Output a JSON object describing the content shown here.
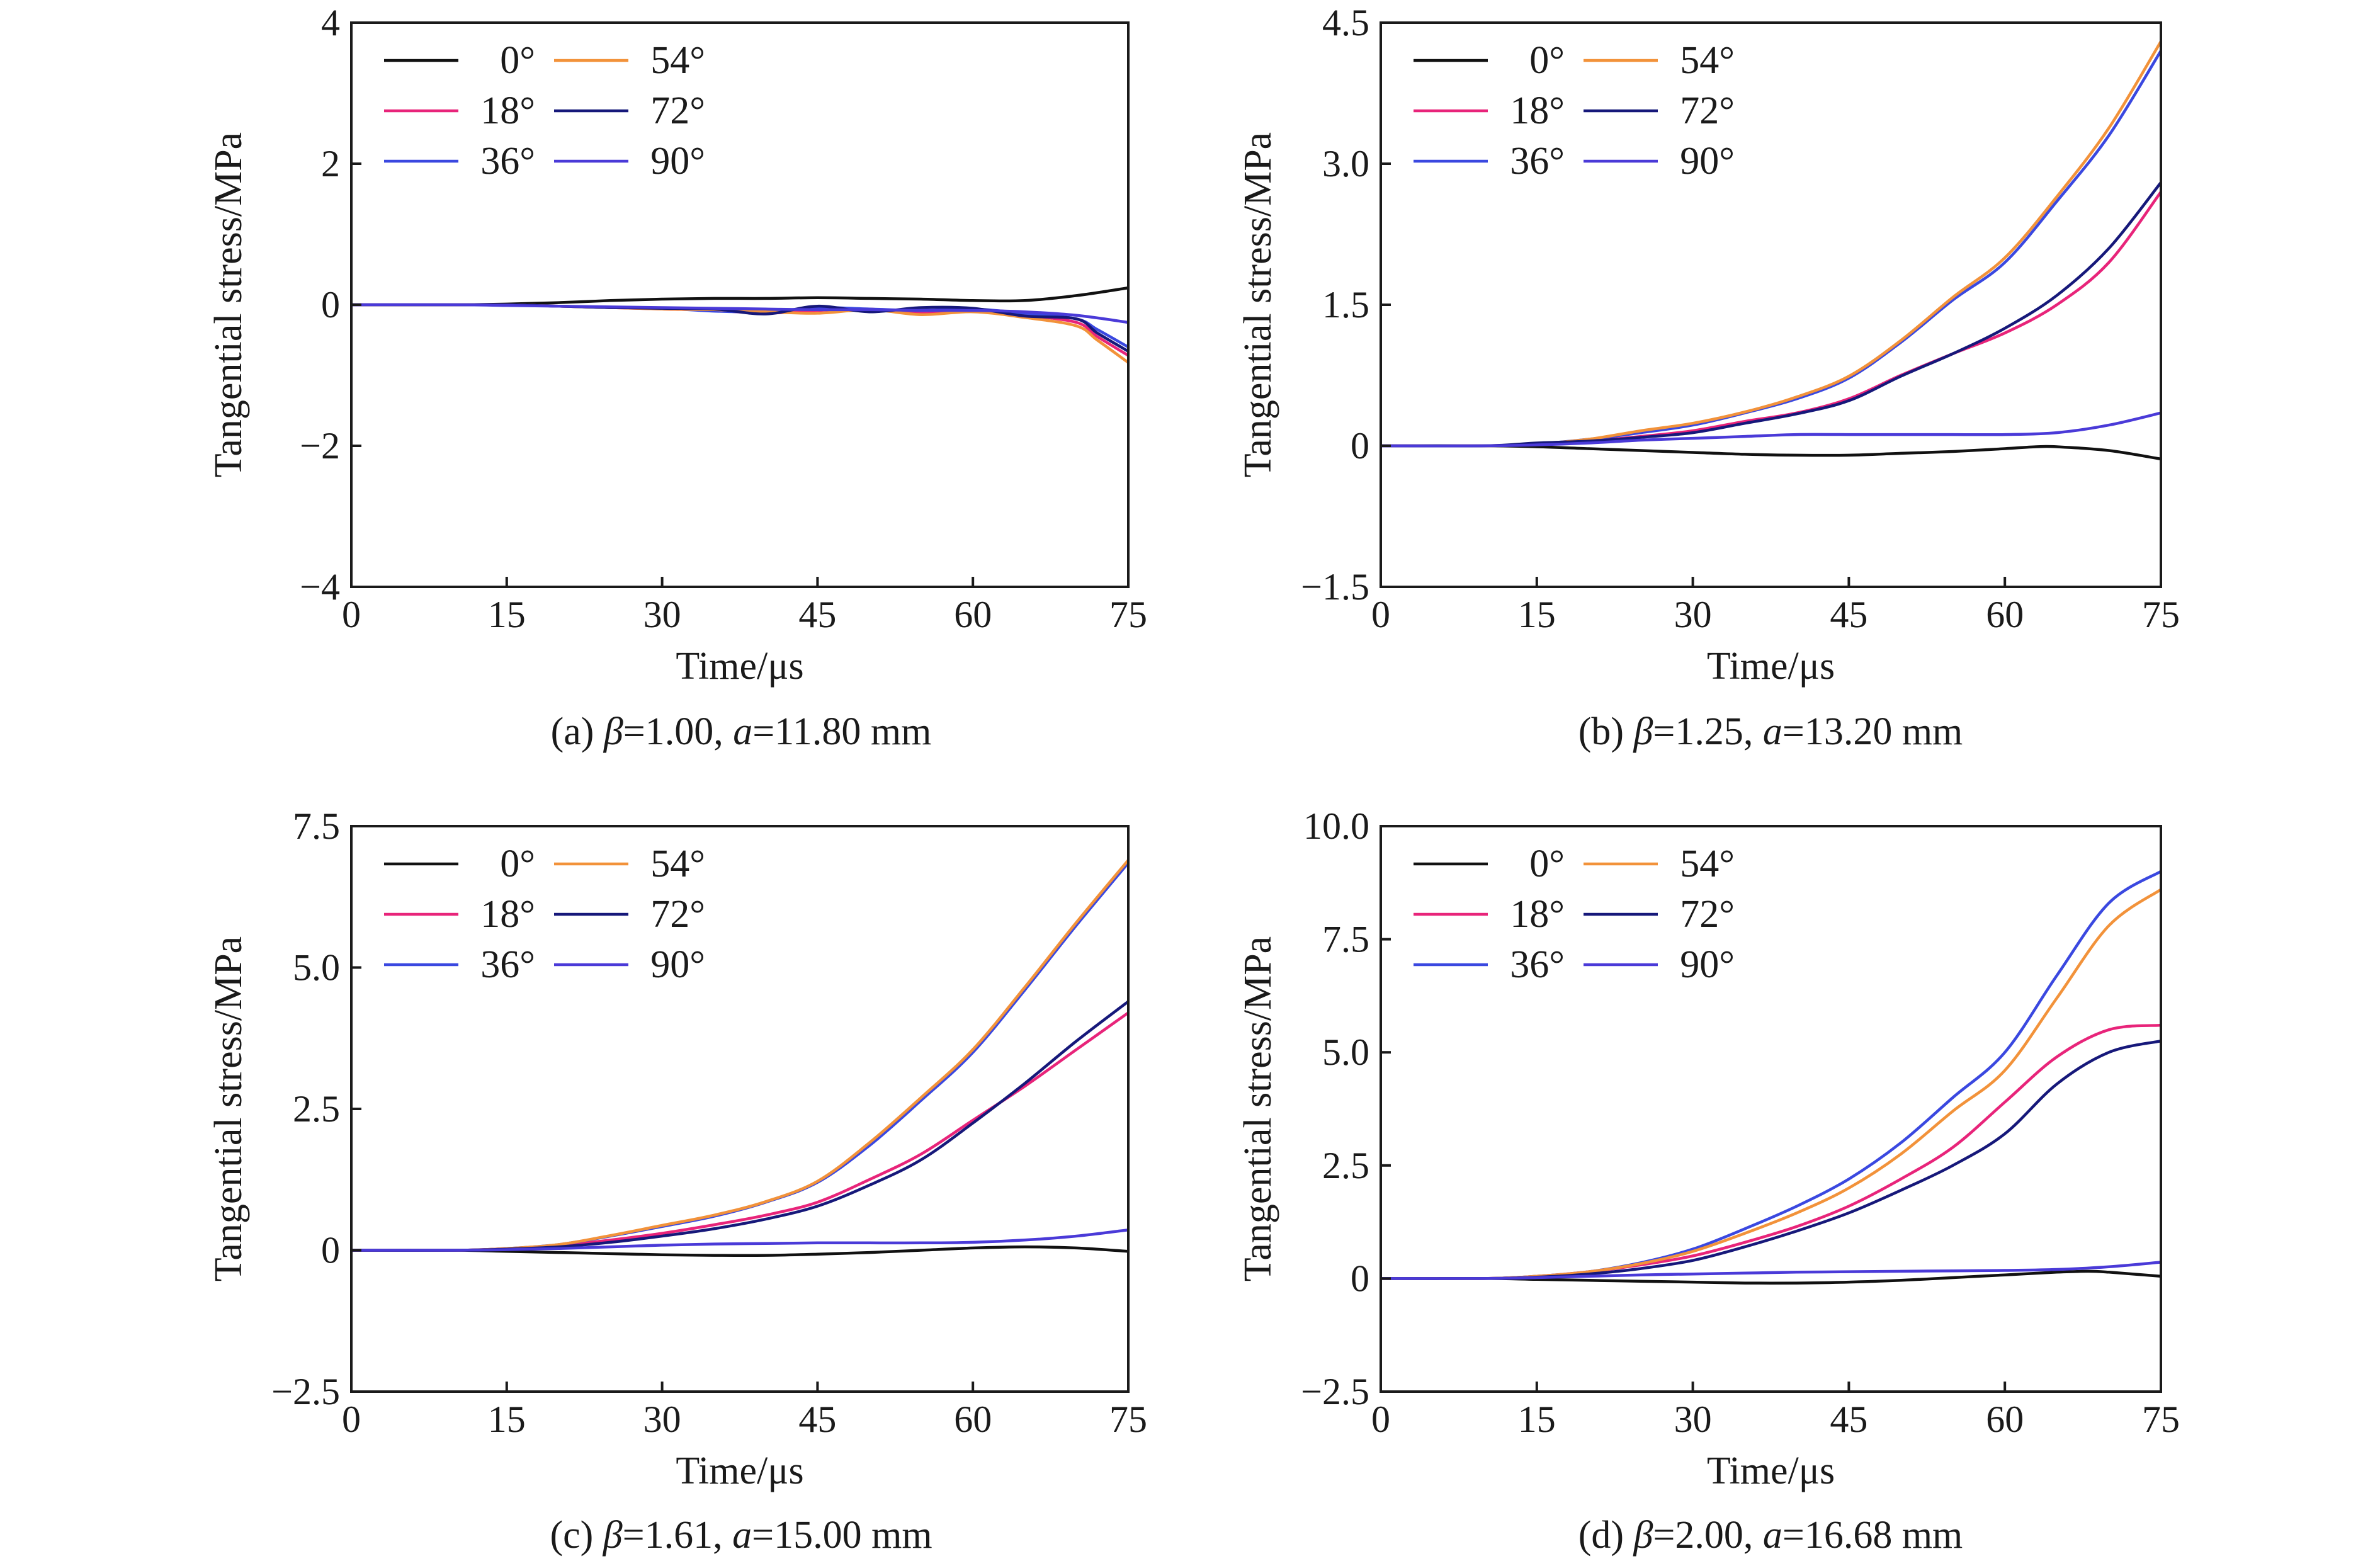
{
  "figure": {
    "series_colors": {
      "0°": "#111111",
      "18°": "#e8247a",
      "36°": "#3a48e0",
      "54°": "#f2923a",
      "72°": "#16187a",
      "90°": "#4a3ad8"
    },
    "legend_order": [
      [
        "0°",
        "54°"
      ],
      [
        "18°",
        "72°"
      ],
      [
        "36°",
        "90°"
      ]
    ]
  },
  "chart_data": [
    {
      "type": "line",
      "panel": "a",
      "caption_prefix": "(a) ",
      "caption_beta_sym": "β",
      "caption_beta_val": "=1.00, ",
      "caption_a_sym": "a",
      "caption_a_val": "=11.80 mm",
      "xlabel": "Time/μs",
      "ylabel": "Tangential stress/MPa",
      "xlim": [
        0,
        75
      ],
      "ylim": [
        -4,
        4
      ],
      "xticks": [
        0,
        15,
        30,
        45,
        60,
        75
      ],
      "xtick_labels": [
        "0",
        "15",
        "30",
        "45",
        "60",
        "75"
      ],
      "yticks": [
        -4,
        -2,
        0,
        2,
        4
      ],
      "ytick_labels": [
        "−4",
        "−2",
        "0",
        "2",
        "4"
      ],
      "legend": [
        "0°",
        "18°",
        "36°",
        "54°",
        "72°",
        "90°"
      ],
      "series": [
        {
          "name": "0°",
          "x": [
            0,
            10,
            15,
            20,
            25,
            30,
            35,
            40,
            45,
            50,
            55,
            60,
            65,
            70,
            75
          ],
          "y": [
            0,
            0,
            0.01,
            0.03,
            0.06,
            0.08,
            0.09,
            0.09,
            0.1,
            0.09,
            0.08,
            0.06,
            0.06,
            0.13,
            0.24
          ]
        },
        {
          "name": "18°",
          "x": [
            0,
            10,
            15,
            20,
            25,
            30,
            35,
            40,
            45,
            50,
            55,
            60,
            65,
            70,
            72,
            75
          ],
          "y": [
            0,
            0,
            0,
            -0.02,
            -0.04,
            -0.06,
            -0.08,
            -0.12,
            -0.08,
            -0.06,
            -0.12,
            -0.08,
            -0.15,
            -0.25,
            -0.45,
            -0.72
          ]
        },
        {
          "name": "36°",
          "x": [
            0,
            10,
            15,
            20,
            25,
            30,
            35,
            40,
            45,
            50,
            55,
            60,
            65,
            70,
            72,
            75
          ],
          "y": [
            0,
            0,
            0,
            -0.02,
            -0.04,
            -0.05,
            -0.09,
            -0.1,
            -0.04,
            -0.06,
            -0.08,
            -0.06,
            -0.12,
            -0.2,
            -0.35,
            -0.6
          ]
        },
        {
          "name": "54°",
          "x": [
            0,
            10,
            15,
            20,
            25,
            30,
            35,
            40,
            45,
            50,
            55,
            60,
            65,
            70,
            72,
            75
          ],
          "y": [
            0,
            0,
            0,
            -0.02,
            -0.04,
            -0.06,
            -0.07,
            -0.1,
            -0.12,
            -0.07,
            -0.14,
            -0.1,
            -0.18,
            -0.3,
            -0.5,
            -0.82
          ]
        },
        {
          "name": "72°",
          "x": [
            0,
            10,
            15,
            20,
            25,
            30,
            35,
            40,
            45,
            50,
            55,
            60,
            65,
            70,
            72,
            75
          ],
          "y": [
            0,
            0,
            0,
            -0.02,
            -0.04,
            -0.05,
            -0.06,
            -0.13,
            -0.02,
            -0.1,
            -0.04,
            -0.05,
            -0.16,
            -0.2,
            -0.4,
            -0.66
          ]
        },
        {
          "name": "90°",
          "x": [
            0,
            10,
            15,
            20,
            25,
            30,
            35,
            40,
            45,
            50,
            55,
            60,
            65,
            70,
            75
          ],
          "y": [
            0,
            0,
            -0.01,
            -0.02,
            -0.03,
            -0.04,
            -0.05,
            -0.06,
            -0.07,
            -0.07,
            -0.08,
            -0.08,
            -0.1,
            -0.15,
            -0.25
          ]
        }
      ]
    },
    {
      "type": "line",
      "panel": "b",
      "caption_prefix": "(b) ",
      "caption_beta_sym": "β",
      "caption_beta_val": "=1.25, ",
      "caption_a_sym": "a",
      "caption_a_val": "=13.20 mm",
      "xlabel": "Time/μs",
      "ylabel": "Tangential stress/MPa",
      "xlim": [
        0,
        75
      ],
      "ylim": [
        -1.5,
        4.5
      ],
      "xticks": [
        0,
        15,
        30,
        45,
        60,
        75
      ],
      "xtick_labels": [
        "0",
        "15",
        "30",
        "45",
        "60",
        "75"
      ],
      "yticks": [
        -1.5,
        0,
        1.5,
        3.0,
        4.5
      ],
      "ytick_labels": [
        "−1.5",
        "0",
        "1.5",
        "3.0",
        "4.5"
      ],
      "legend": [
        "0°",
        "18°",
        "36°",
        "54°",
        "72°",
        "90°"
      ],
      "series": [
        {
          "name": "0°",
          "x": [
            0,
            10,
            15,
            20,
            25,
            30,
            35,
            40,
            45,
            50,
            55,
            60,
            63,
            65,
            70,
            75
          ],
          "y": [
            0,
            0,
            -0.01,
            -0.03,
            -0.05,
            -0.07,
            -0.09,
            -0.1,
            -0.1,
            -0.08,
            -0.06,
            -0.03,
            -0.01,
            -0.01,
            -0.05,
            -0.14
          ]
        },
        {
          "name": "18°",
          "x": [
            0,
            10,
            15,
            20,
            25,
            30,
            35,
            40,
            45,
            50,
            55,
            60,
            65,
            70,
            75
          ],
          "y": [
            0,
            0,
            0.02,
            0.05,
            0.1,
            0.16,
            0.26,
            0.35,
            0.5,
            0.75,
            0.98,
            1.2,
            1.5,
            1.95,
            2.7
          ]
        },
        {
          "name": "36°",
          "x": [
            0,
            10,
            15,
            20,
            25,
            30,
            35,
            40,
            45,
            50,
            55,
            60,
            65,
            70,
            75
          ],
          "y": [
            0,
            0,
            0.02,
            0.07,
            0.14,
            0.22,
            0.35,
            0.5,
            0.72,
            1.1,
            1.55,
            1.95,
            2.6,
            3.3,
            4.2
          ]
        },
        {
          "name": "54°",
          "x": [
            0,
            10,
            15,
            20,
            25,
            30,
            35,
            40,
            45,
            50,
            55,
            60,
            65,
            70,
            75
          ],
          "y": [
            0,
            0,
            0.02,
            0.07,
            0.16,
            0.24,
            0.36,
            0.52,
            0.74,
            1.12,
            1.58,
            2.0,
            2.65,
            3.38,
            4.3
          ]
        },
        {
          "name": "72°",
          "x": [
            0,
            10,
            15,
            20,
            25,
            30,
            35,
            40,
            45,
            50,
            55,
            60,
            65,
            70,
            75
          ],
          "y": [
            0,
            0,
            0.03,
            0.05,
            0.09,
            0.14,
            0.24,
            0.34,
            0.48,
            0.74,
            0.98,
            1.25,
            1.6,
            2.1,
            2.8
          ]
        },
        {
          "name": "90°",
          "x": [
            0,
            10,
            15,
            20,
            25,
            30,
            35,
            40,
            45,
            50,
            55,
            60,
            65,
            70,
            75
          ],
          "y": [
            0,
            0,
            0.01,
            0.03,
            0.06,
            0.08,
            0.1,
            0.12,
            0.12,
            0.12,
            0.12,
            0.12,
            0.14,
            0.22,
            0.35
          ]
        }
      ]
    },
    {
      "type": "line",
      "panel": "c",
      "caption_prefix": "(c) ",
      "caption_beta_sym": "β",
      "caption_beta_val": "=1.61, ",
      "caption_a_sym": "a",
      "caption_a_val": "=15.00 mm",
      "xlabel": "Time/μs",
      "ylabel": "Tangential stress/MPa",
      "xlim": [
        0,
        75
      ],
      "ylim": [
        -2.5,
        7.5
      ],
      "xticks": [
        0,
        15,
        30,
        45,
        60,
        75
      ],
      "xtick_labels": [
        "0",
        "15",
        "30",
        "45",
        "60",
        "75"
      ],
      "yticks": [
        -2.5,
        0,
        2.5,
        5.0,
        7.5
      ],
      "ytick_labels": [
        "−2.5",
        "0",
        "2.5",
        "5.0",
        "7.5"
      ],
      "legend": [
        "0°",
        "18°",
        "36°",
        "54°",
        "72°",
        "90°"
      ],
      "series": [
        {
          "name": "0°",
          "x": [
            0,
            10,
            15,
            20,
            25,
            30,
            35,
            40,
            45,
            50,
            55,
            60,
            65,
            70,
            75
          ],
          "y": [
            0,
            0,
            -0.02,
            -0.04,
            -0.06,
            -0.08,
            -0.09,
            -0.09,
            -0.07,
            -0.04,
            0.0,
            0.04,
            0.06,
            0.04,
            -0.02
          ]
        },
        {
          "name": "18°",
          "x": [
            0,
            10,
            15,
            20,
            25,
            30,
            35,
            40,
            45,
            50,
            55,
            60,
            65,
            70,
            75
          ],
          "y": [
            0,
            0,
            0.03,
            0.08,
            0.18,
            0.3,
            0.45,
            0.62,
            0.85,
            1.25,
            1.7,
            2.3,
            2.9,
            3.55,
            4.2
          ]
        },
        {
          "name": "36°",
          "x": [
            0,
            10,
            15,
            20,
            25,
            30,
            35,
            40,
            45,
            50,
            55,
            60,
            65,
            70,
            75
          ],
          "y": [
            0,
            0,
            0.03,
            0.1,
            0.25,
            0.42,
            0.6,
            0.85,
            1.2,
            1.85,
            2.65,
            3.5,
            4.6,
            5.75,
            6.85
          ]
        },
        {
          "name": "54°",
          "x": [
            0,
            10,
            15,
            20,
            25,
            30,
            35,
            40,
            45,
            50,
            55,
            60,
            65,
            70,
            75
          ],
          "y": [
            0,
            0,
            0.03,
            0.1,
            0.26,
            0.44,
            0.62,
            0.86,
            1.22,
            1.9,
            2.7,
            3.55,
            4.65,
            5.8,
            6.9
          ]
        },
        {
          "name": "72°",
          "x": [
            0,
            10,
            15,
            20,
            25,
            30,
            35,
            40,
            45,
            50,
            55,
            60,
            65,
            70,
            75
          ],
          "y": [
            0,
            0,
            0.02,
            0.06,
            0.14,
            0.25,
            0.38,
            0.55,
            0.78,
            1.15,
            1.6,
            2.25,
            2.95,
            3.7,
            4.4
          ]
        },
        {
          "name": "90°",
          "x": [
            0,
            10,
            15,
            20,
            25,
            30,
            35,
            40,
            45,
            50,
            55,
            60,
            65,
            70,
            75
          ],
          "y": [
            0,
            0,
            0.01,
            0.03,
            0.06,
            0.09,
            0.11,
            0.12,
            0.13,
            0.13,
            0.13,
            0.14,
            0.18,
            0.25,
            0.36
          ]
        }
      ]
    },
    {
      "type": "line",
      "panel": "d",
      "caption_prefix": "(d) ",
      "caption_beta_sym": "β",
      "caption_beta_val": "=2.00, ",
      "caption_a_sym": "a",
      "caption_a_val": "=16.68 mm",
      "xlabel": "Time/μs",
      "ylabel": "Tangential stress/MPa",
      "xlim": [
        0,
        75
      ],
      "ylim": [
        -2.5,
        10.0
      ],
      "xticks": [
        0,
        15,
        30,
        45,
        60,
        75
      ],
      "xtick_labels": [
        "0",
        "15",
        "30",
        "45",
        "60",
        "75"
      ],
      "yticks": [
        -2.5,
        0,
        2.5,
        5.0,
        7.5,
        10.0
      ],
      "ytick_labels": [
        "−2.5",
        "0",
        "2.5",
        "5.0",
        "7.5",
        "10.0"
      ],
      "legend": [
        "0°",
        "18°",
        "36°",
        "54°",
        "72°",
        "90°"
      ],
      "series": [
        {
          "name": "0°",
          "x": [
            0,
            10,
            15,
            20,
            25,
            30,
            35,
            40,
            45,
            50,
            55,
            60,
            65,
            68,
            70,
            75
          ],
          "y": [
            0,
            0,
            -0.02,
            -0.04,
            -0.06,
            -0.08,
            -0.1,
            -0.1,
            -0.08,
            -0.04,
            0.02,
            0.08,
            0.14,
            0.16,
            0.14,
            0.05
          ]
        },
        {
          "name": "18°",
          "x": [
            0,
            10,
            15,
            20,
            25,
            30,
            35,
            40,
            45,
            50,
            55,
            60,
            65,
            70,
            75
          ],
          "y": [
            0,
            0,
            0.05,
            0.15,
            0.3,
            0.5,
            0.8,
            1.15,
            1.6,
            2.2,
            2.9,
            3.9,
            4.9,
            5.5,
            5.6
          ]
        },
        {
          "name": "36°",
          "x": [
            0,
            10,
            15,
            20,
            25,
            30,
            35,
            40,
            45,
            50,
            55,
            60,
            65,
            70,
            75
          ],
          "y": [
            0,
            0,
            0.05,
            0.15,
            0.35,
            0.65,
            1.1,
            1.6,
            2.2,
            3.0,
            4.0,
            5.0,
            6.7,
            8.3,
            9.0
          ]
        },
        {
          "name": "54°",
          "x": [
            0,
            10,
            15,
            20,
            25,
            30,
            35,
            40,
            45,
            50,
            55,
            60,
            65,
            70,
            75
          ],
          "y": [
            0,
            0,
            0.05,
            0.15,
            0.33,
            0.6,
            1.0,
            1.45,
            2.0,
            2.75,
            3.7,
            4.6,
            6.2,
            7.8,
            8.6
          ]
        },
        {
          "name": "72°",
          "x": [
            0,
            10,
            15,
            20,
            25,
            30,
            35,
            40,
            45,
            50,
            55,
            60,
            65,
            70,
            75
          ],
          "y": [
            0,
            0,
            0.03,
            0.1,
            0.22,
            0.4,
            0.7,
            1.05,
            1.45,
            1.95,
            2.5,
            3.2,
            4.3,
            5.0,
            5.25
          ]
        },
        {
          "name": "90°",
          "x": [
            0,
            10,
            15,
            20,
            25,
            30,
            35,
            40,
            45,
            50,
            55,
            60,
            65,
            70,
            75
          ],
          "y": [
            0,
            0,
            0.02,
            0.05,
            0.08,
            0.1,
            0.12,
            0.14,
            0.15,
            0.16,
            0.17,
            0.18,
            0.2,
            0.26,
            0.36
          ]
        }
      ]
    }
  ]
}
